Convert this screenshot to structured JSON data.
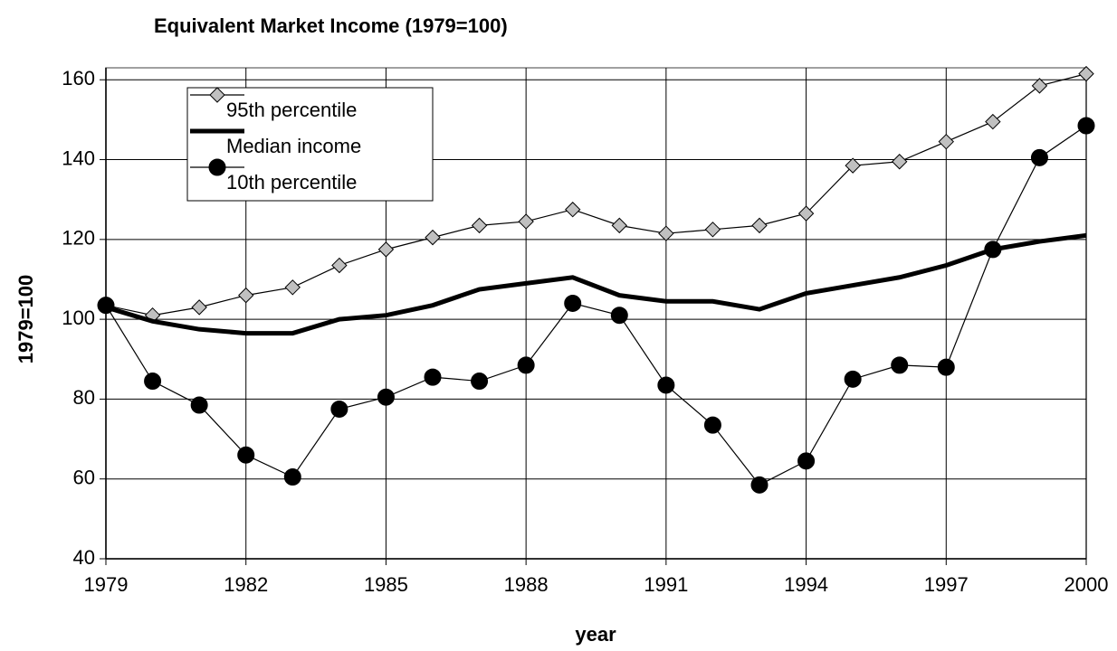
{
  "chart_data": {
    "type": "line",
    "title": "Equivalent Market Income (1979=100)",
    "xlabel": "year",
    "ylabel": "1979=100",
    "x": [
      1979,
      1980,
      1981,
      1982,
      1983,
      1984,
      1985,
      1986,
      1987,
      1988,
      1989,
      1990,
      1991,
      1992,
      1993,
      1994,
      1995,
      1996,
      1997,
      1998,
      1999,
      2000
    ],
    "series": [
      {
        "name": "95th percentile",
        "color": "#c0c0c0",
        "marker": "diamond",
        "values": [
          103.5,
          101,
          103,
          106,
          108,
          113.5,
          117.5,
          120.5,
          123.5,
          124.5,
          127.5,
          123.5,
          121.5,
          122.5,
          123.5,
          126.5,
          138.5,
          139.5,
          144.5,
          149.5,
          158.5,
          161.5
        ]
      },
      {
        "name": "Median income",
        "color": "#000000",
        "marker": "none",
        "values": [
          103,
          99.5,
          97.5,
          96.5,
          96.5,
          100,
          101,
          103.5,
          107.5,
          109,
          110.5,
          106,
          104.5,
          104.5,
          102.5,
          106.5,
          108.5,
          110.5,
          113.5,
          117.5,
          119.5,
          121
        ]
      },
      {
        "name": "10th percentile",
        "color": "#000000",
        "marker": "circle",
        "values": [
          103.5,
          84.5,
          78.5,
          66,
          60.5,
          77.5,
          80.5,
          85.5,
          84.5,
          88.5,
          104,
          101,
          83.5,
          73.5,
          58.5,
          64.5,
          85,
          88.5,
          88,
          117.5,
          140.5,
          148.5
        ]
      }
    ],
    "xlim": [
      1979,
      2000
    ],
    "xticks": [
      1979,
      1982,
      1985,
      1988,
      1991,
      1994,
      1997,
      2000
    ],
    "ylim": [
      40,
      163
    ],
    "yticks": [
      40,
      60,
      80,
      100,
      120,
      140,
      160
    ],
    "grid": true,
    "legend": "upper left"
  }
}
